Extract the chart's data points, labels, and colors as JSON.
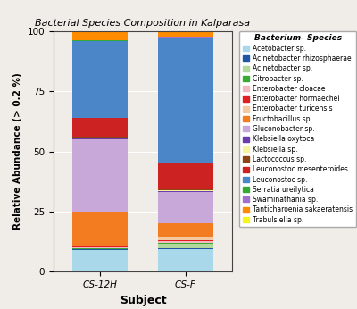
{
  "title": "Bacterial Species Composition in Kalparasa",
  "xlabel": "Subject",
  "ylabel": "Relative Abundance (> 0.2 %)",
  "subjects": [
    "CS-12H",
    "CS-F"
  ],
  "species": [
    "Acetobacter sp.",
    "Acinetobacter rhizosphaerae",
    "Acinetobacter sp.",
    "Citrobacter sp.",
    "Enterobacter cloacae",
    "Enterobacter hormaechei",
    "Enterobacter turicensis",
    "Fructobacillus sp.",
    "Gluconobacter sp.",
    "Klebsiella oxytoca",
    "Klebsiella sp.",
    "Lactococcus sp.",
    "Leuconostoc mesenteroides",
    "Leuconostoc sp.",
    "Serratia ureilytica",
    "Swaminathania sp.",
    "Tanticharoenia sakaeratensis",
    "Trabulsiella sp."
  ],
  "colors": [
    "#A8D8EA",
    "#2255A4",
    "#B2D89B",
    "#3AAA35",
    "#F4B8C1",
    "#E02020",
    "#F5C9A0",
    "#F47C20",
    "#C8A8D8",
    "#6A3DAA",
    "#F5F5A0",
    "#8B4513",
    "#CC2222",
    "#4A86C8",
    "#33AA33",
    "#A070CC",
    "#FF8C00",
    "#F5F520"
  ],
  "CS-12H": [
    9.0,
    0.3,
    0.3,
    0.2,
    0.3,
    0.4,
    0.5,
    14.0,
    30.0,
    0.3,
    0.5,
    0.5,
    7.5,
    32.0,
    0.2,
    0.2,
    4.0,
    0.3
  ],
  "CS-F": [
    9.5,
    0.3,
    1.8,
    0.4,
    0.8,
    0.4,
    1.5,
    5.5,
    13.0,
    0.2,
    0.5,
    0.2,
    11.0,
    52.0,
    0.3,
    0.3,
    2.3,
    0.2
  ],
  "background_color": "#f0ede8",
  "ylim": [
    0,
    100
  ],
  "yticks": [
    0,
    25,
    50,
    75,
    100
  ]
}
